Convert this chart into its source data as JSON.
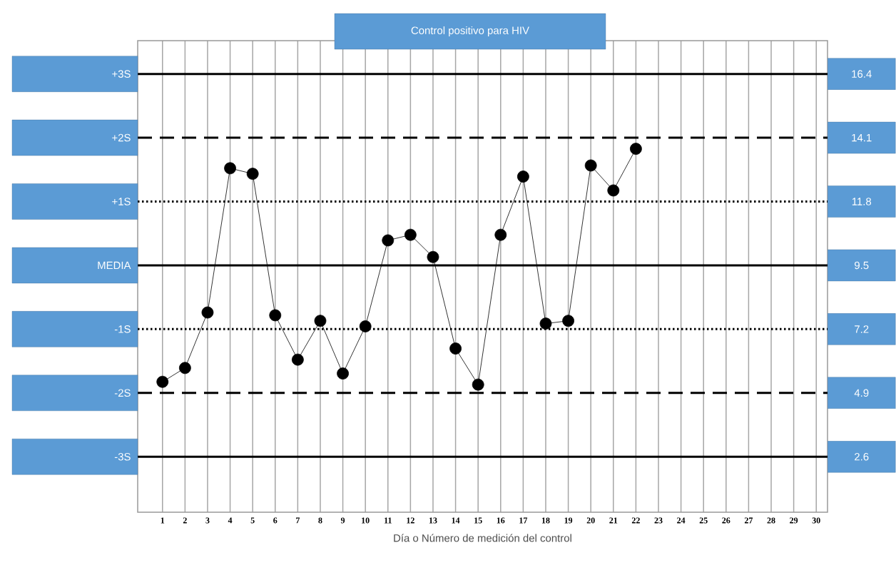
{
  "chart_data": {
    "type": "line",
    "title": "Control positivo para HIV",
    "xlabel": "Día o Número de medición del control",
    "x": [
      1,
      2,
      3,
      4,
      5,
      6,
      7,
      8,
      9,
      10,
      11,
      12,
      13,
      14,
      15,
      16,
      17,
      18,
      19,
      20,
      21,
      22
    ],
    "series": [
      {
        "color": "#000000",
        "values": [
          5.3,
          5.8,
          7.8,
          13.0,
          12.8,
          7.7,
          6.1,
          7.5,
          5.6,
          7.3,
          10.4,
          10.6,
          9.8,
          6.5,
          5.2,
          10.6,
          12.7,
          7.4,
          7.5,
          13.1,
          12.2,
          13.7
        ]
      }
    ],
    "xlim": [
      -0.1,
      30.5
    ],
    "xticks": [
      1,
      2,
      3,
      4,
      5,
      6,
      7,
      8,
      9,
      10,
      11,
      12,
      13,
      14,
      15,
      16,
      17,
      18,
      19,
      20,
      21,
      22,
      23,
      24,
      25,
      26,
      27,
      28,
      29,
      30
    ],
    "ylim": [
      0.6,
      17.6
    ],
    "yticks": [
      2.6,
      4.9,
      7.2,
      9.5,
      11.8,
      14.1,
      16.4
    ],
    "ref_lines": [
      {
        "axis": "y",
        "value": 16.4,
        "label": "+3S",
        "line_style": "solid"
      },
      {
        "axis": "y",
        "value": 14.1,
        "label": "+2S",
        "line_style": "dashed"
      },
      {
        "axis": "y",
        "value": 11.8,
        "label": "+1S",
        "line_style": "dotted"
      },
      {
        "axis": "y",
        "value": 9.5,
        "label": "MEDIA",
        "line_style": "solid"
      },
      {
        "axis": "y",
        "value": 7.2,
        "label": "-1S",
        "line_style": "dotted"
      },
      {
        "axis": "y",
        "value": 4.9,
        "label": "-2S",
        "line_style": "dashed"
      },
      {
        "axis": "y",
        "value": 2.6,
        "label": "-3S",
        "line_style": "solid"
      }
    ],
    "grid": "x",
    "marker": "circle",
    "line_style": "solid"
  }
}
